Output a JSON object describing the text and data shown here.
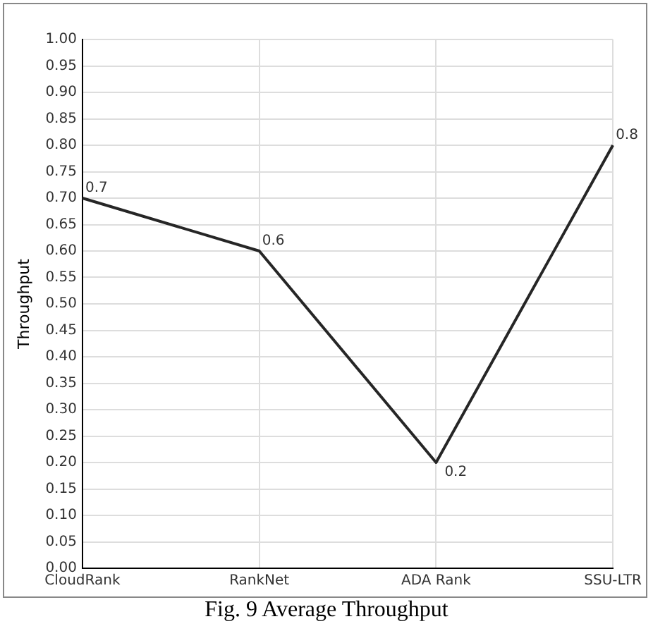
{
  "chart_data": {
    "type": "line",
    "title": "Fig. 9 Average Throughput",
    "ylabel": "Throughput",
    "categories": [
      "CloudRank",
      "RankNet",
      "ADA Rank",
      "SSU-LTR"
    ],
    "series": [
      {
        "color": "#262626",
        "values": [
          0.7,
          0.6,
          0.2,
          0.8
        ]
      }
    ],
    "ylim": [
      0,
      1
    ],
    "yticks": [
      "0.00",
      "0.05",
      "0.10",
      "0.15",
      "0.20",
      "0.25",
      "0.30",
      "0.35",
      "0.40",
      "0.45",
      "0.50",
      "0.55",
      "0.60",
      "0.65",
      "0.70",
      "0.75",
      "0.80",
      "0.85",
      "0.90",
      "0.95",
      "1.00"
    ],
    "grid": true,
    "legend": false,
    "marker": "none",
    "line_style": "solid",
    "data_labels": true
  }
}
